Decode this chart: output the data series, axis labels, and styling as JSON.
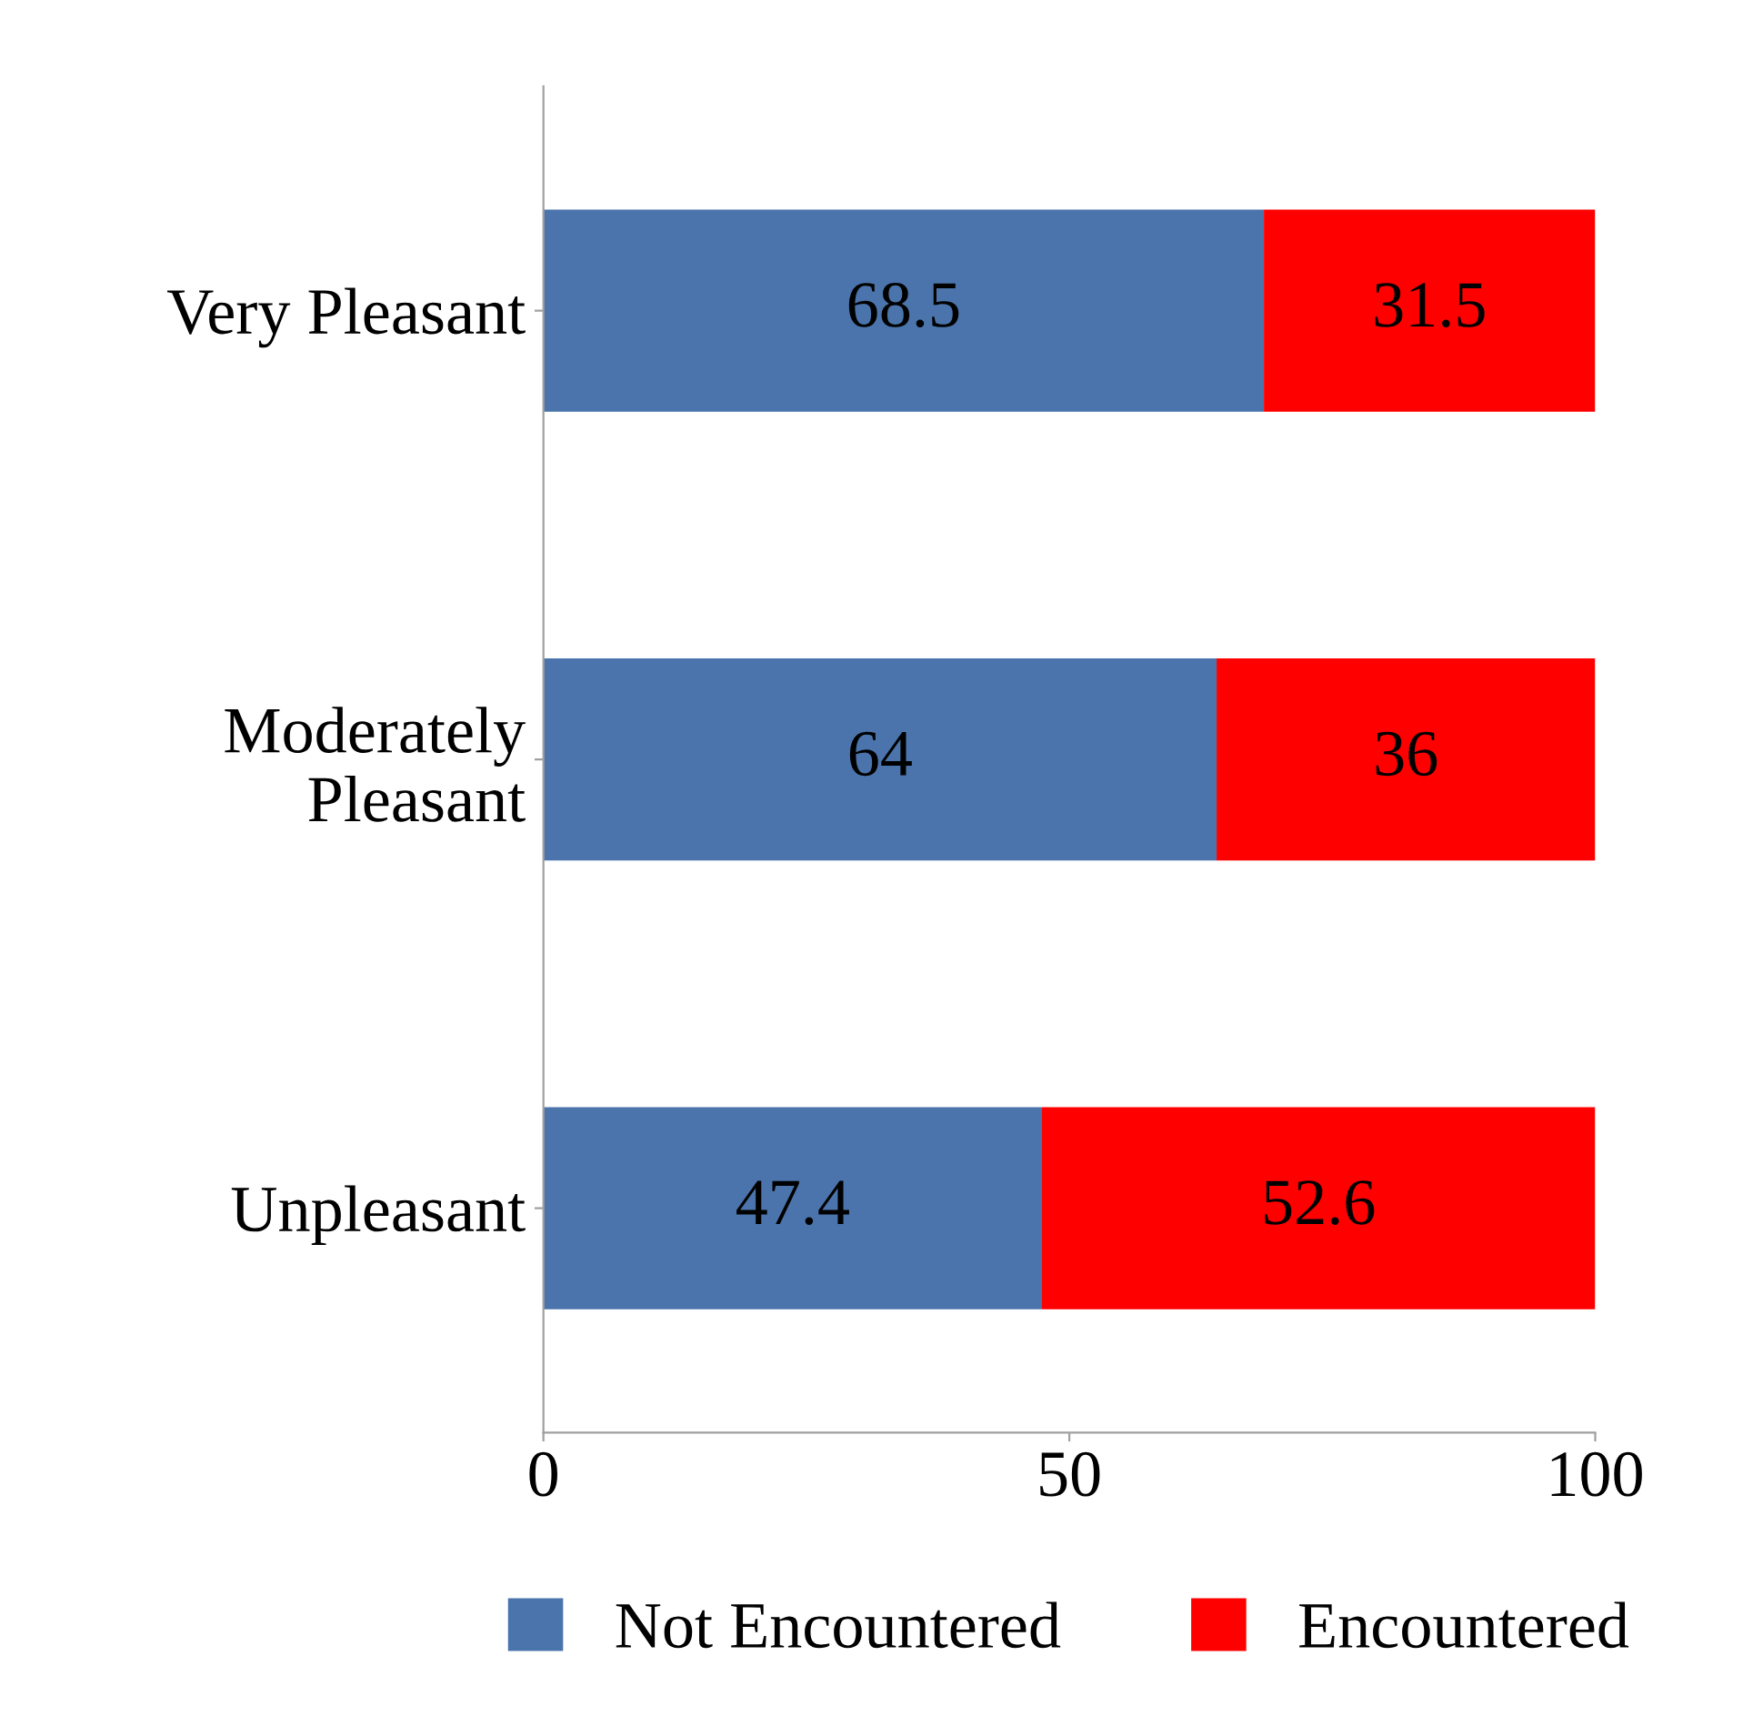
{
  "chart_data": {
    "type": "bar",
    "orientation": "horizontal",
    "stacked": true,
    "categories": [
      "Very Pleasant",
      "Moderately\nPleasant",
      "Unpleasant"
    ],
    "series": [
      {
        "name": "Not Encountered",
        "color": "#4a74ab",
        "values": [
          68.5,
          64,
          47.4
        ]
      },
      {
        "name": "Encountered",
        "color": "#ff0000",
        "values": [
          31.5,
          36,
          52.6
        ]
      }
    ],
    "xlim": [
      0,
      100
    ],
    "xticks": [
      0,
      50,
      100
    ],
    "data_labels": true,
    "grid": false,
    "legend": "bottom"
  }
}
